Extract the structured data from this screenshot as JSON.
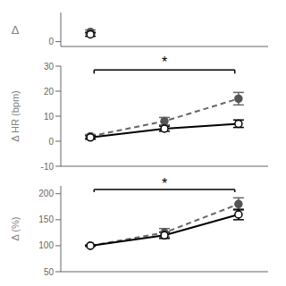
{
  "chart_data": [
    {
      "type": "line",
      "x": [
        1
      ],
      "xlim": [
        0.6,
        3.4
      ],
      "ylim": [
        -1,
        6
      ],
      "yticks": [
        0
      ],
      "ylabel": "Δ",
      "tick_labels": "y",
      "grid": false,
      "series": [
        {
          "color": "#000000",
          "marker": "open_circle",
          "line_style": "none",
          "values": [
            1.5
          ],
          "error": [
            0.4
          ]
        },
        {
          "color": "#666666",
          "colors": [
            "#555555"
          ],
          "marker": "filled_circle",
          "line_style": "none",
          "values": [
            2.0
          ],
          "error": [
            0.4
          ]
        }
      ]
    },
    {
      "type": "line",
      "x": [
        1,
        2,
        3
      ],
      "xlim": [
        0.6,
        3.4
      ],
      "ylim": [
        -10,
        30
      ],
      "yticks": [
        -10,
        0,
        10,
        20,
        30
      ],
      "ylabel": "Δ HR (bpm)",
      "tick_labels": "y",
      "grid": false,
      "series": [
        {
          "color": "#000000",
          "marker": "open_circle",
          "line_style": "solid",
          "values": [
            1.5,
            5.0,
            7.0
          ],
          "error": [
            0.7,
            1.0,
            1.5
          ]
        },
        {
          "color": "#666666",
          "colors": [
            "#555555",
            "#555555",
            "#555555"
          ],
          "marker": "filled_circle",
          "line_style": "dashed",
          "values": [
            2.0,
            8.0,
            17.0
          ],
          "error": [
            0.7,
            1.5,
            2.5
          ]
        }
      ],
      "annotations": [
        {
          "text": "*",
          "x": 2,
          "y": 29.5,
          "bracket": {
            "x": [
              1.05,
              2.95
            ],
            "y": 28.5,
            "y_end": 27
          }
        }
      ]
    },
    {
      "type": "line",
      "x": [
        1,
        2,
        3
      ],
      "xlim": [
        0.6,
        3.4
      ],
      "ylim": [
        50,
        215
      ],
      "yticks": [
        50,
        100,
        150,
        200
      ],
      "ylabel": "Δ (%)",
      "tick_labels": "y",
      "grid": false,
      "series": [
        {
          "color": "#000000",
          "marker": "open_circle",
          "line_style": "solid",
          "values": [
            100,
            120,
            160
          ],
          "error": [
            1,
            6,
            10
          ]
        },
        {
          "color": "#666666",
          "colors": [
            "#555555",
            "#555555",
            "#555555"
          ],
          "marker": "filled_circle",
          "line_style": "dashed",
          "values": [
            100,
            125,
            180
          ],
          "error": [
            1,
            8,
            12
          ]
        }
      ],
      "annotations": [
        {
          "text": "*",
          "x": 2,
          "y": 210,
          "bracket": {
            "x": [
              1.05,
              2.95
            ],
            "y": 208,
            "y_end": 203
          }
        }
      ]
    }
  ]
}
